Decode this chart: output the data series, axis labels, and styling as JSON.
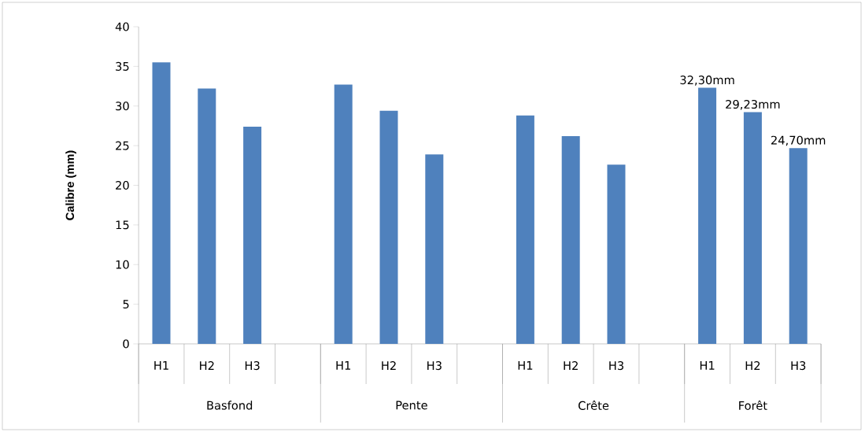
{
  "chart_data": {
    "type": "bar",
    "ylabel": "Calibre (mm)",
    "categories": [
      "H1",
      "H2",
      "H3",
      null,
      "H1",
      "H2",
      "H3",
      null,
      "H1",
      "H2",
      "H3",
      null,
      "H1",
      "H2",
      "H3"
    ],
    "values": [
      35.5,
      32.2,
      27.4,
      null,
      32.7,
      29.4,
      23.9,
      null,
      28.8,
      26.2,
      22.6,
      null,
      32.3,
      29.23,
      24.7
    ],
    "value_labels": [
      null,
      null,
      null,
      null,
      null,
      null,
      null,
      null,
      null,
      null,
      null,
      null,
      "32,30mm",
      "29,23mm",
      "24,70mm"
    ],
    "color": "#4f81bd",
    "annotations": [
      "Basfond",
      "Pente",
      "Crête",
      "Forêt"
    ],
    "ylim": [
      0,
      40
    ],
    "yticks": [
      0,
      5,
      10,
      15,
      20,
      25,
      30,
      35,
      40
    ]
  }
}
